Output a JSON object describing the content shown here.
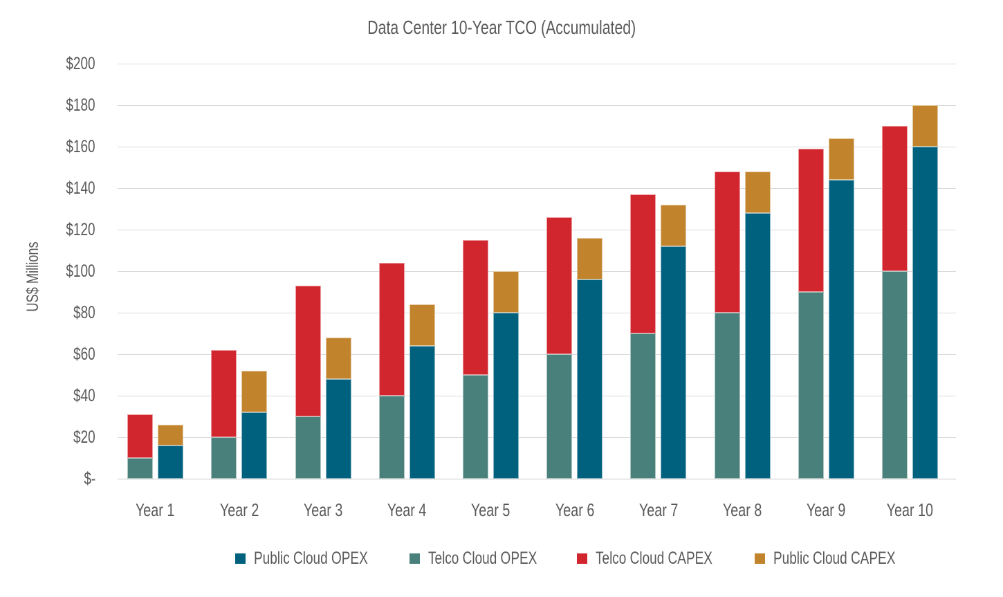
{
  "chart_data": {
    "type": "bar",
    "stacked": true,
    "title": "Data Center 10-Year TCO (Accumulated)",
    "xlabel": "",
    "ylabel": "US$ Millions",
    "ylim": [
      0,
      200
    ],
    "ytick_step": 20,
    "y_tick_labels": [
      "$200",
      "$180",
      "$160",
      "$140",
      "$120",
      "$100",
      "$80",
      "$60",
      "$40",
      "$20",
      "$-"
    ],
    "grid": true,
    "legend_position": "bottom",
    "categories": [
      "Year 1",
      "Year 2",
      "Year 3",
      "Year 4",
      "Year 5",
      "Year 6",
      "Year 7",
      "Year 8",
      "Year 9",
      "Year 10"
    ],
    "bar_groups": [
      {
        "name": "Telco Cloud",
        "position_in_pair": "left",
        "segments": [
          {
            "name": "Telco Cloud OPEX",
            "color": "#4A807B",
            "values": [
              10,
              20,
              30,
              40,
              50,
              60,
              70,
              80,
              90,
              100
            ]
          },
          {
            "name": "Telco Cloud CAPEX",
            "color": "#D2262E",
            "values": [
              21,
              42,
              63,
              64,
              65,
              66,
              67,
              68,
              69,
              70
            ]
          }
        ],
        "stack_totals": [
          31,
          62,
          93,
          104,
          115,
          126,
          137,
          148,
          159,
          170
        ]
      },
      {
        "name": "Public Cloud",
        "position_in_pair": "right",
        "segments": [
          {
            "name": "Public Cloud OPEX",
            "color": "#00617E",
            "values": [
              16,
              32,
              48,
              64,
              80,
              96,
              112,
              128,
              144,
              160
            ]
          },
          {
            "name": "Public Cloud CAPEX",
            "color": "#C1832B",
            "values": [
              10,
              20,
              20,
              20,
              20,
              20,
              20,
              20,
              20,
              20
            ]
          }
        ],
        "stack_totals": [
          26,
          52,
          68,
          84,
          100,
          116,
          132,
          148,
          164,
          180
        ]
      }
    ],
    "legend": [
      {
        "label": "Public Cloud OPEX",
        "color": "#00617E"
      },
      {
        "label": "Telco Cloud OPEX",
        "color": "#4A807B"
      },
      {
        "label": "Telco Cloud CAPEX",
        "color": "#D2262E"
      },
      {
        "label": "Public Cloud CAPEX",
        "color": "#C1832B"
      }
    ]
  },
  "colors": {
    "background": "#FFFFFF",
    "text": "#595959",
    "gridline": "#D9D9D9",
    "axis_line": "#C6C6C6",
    "public_cloud_opex": "#00617E",
    "telco_cloud_opex": "#4A807B",
    "telco_cloud_capex": "#D2262E",
    "public_cloud_capex": "#C1832B"
  }
}
